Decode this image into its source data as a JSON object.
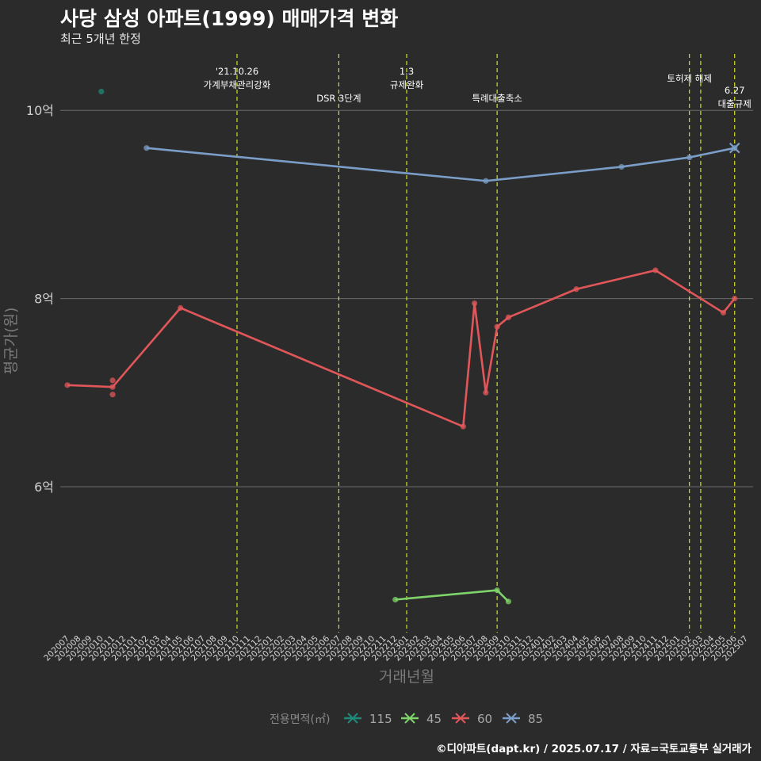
{
  "chart_data": {
    "type": "line",
    "title": "사당 삼성 아파트(1999) 매매가격 변화",
    "subtitle": "최근 5개년 한정",
    "caption": "©디아파트(dapt.kr) / 2025.07.17 / 자료=국토교통부 실거래가",
    "xlabel": "거래년월",
    "ylabel": "평균가(원)",
    "legend_title": "전용면적(㎡)",
    "legend_position": "bottom",
    "ylim": [
      4.45,
      10.6
    ],
    "y_ticks": [
      {
        "value": 6,
        "label": "6억"
      },
      {
        "value": 8,
        "label": "8억"
      },
      {
        "value": 10,
        "label": "10억"
      }
    ],
    "x_categories": [
      "202007",
      "202008",
      "202009",
      "202010",
      "202011",
      "202012",
      "202101",
      "202102",
      "202103",
      "202104",
      "202105",
      "202106",
      "202107",
      "202108",
      "202109",
      "202110",
      "202111",
      "202112",
      "202201",
      "202202",
      "202203",
      "202204",
      "202205",
      "202206",
      "202207",
      "202208",
      "202209",
      "202210",
      "202211",
      "202212",
      "202301",
      "202302",
      "202303",
      "202304",
      "202305",
      "202306",
      "202307",
      "202308",
      "202309",
      "202310",
      "202311",
      "202312",
      "202401",
      "202402",
      "202403",
      "202404",
      "202405",
      "202406",
      "202407",
      "202408",
      "202409",
      "202410",
      "202411",
      "202412",
      "202501",
      "202502",
      "202503",
      "202504",
      "202505",
      "202506",
      "202507"
    ],
    "x_tick_labels": [
      "202007",
      "202008",
      "202009",
      "202010",
      "202011",
      "202012",
      "202101",
      "202102",
      "202103",
      "202104",
      "202105",
      "202106",
      "202107",
      "202108",
      "202109",
      "202110",
      "202111",
      "202112",
      "202201",
      "202202",
      "202203",
      "202204",
      "202205",
      "202206",
      "202207",
      "202208",
      "202209",
      "202210",
      "202211",
      "202212",
      "202301",
      "202302",
      "202303",
      "202304",
      "202305",
      "202306",
      "202307",
      "202308",
      "202309",
      "202310",
      "202311",
      "202312",
      "202401",
      "202402",
      "202403",
      "202404",
      "202405",
      "202406",
      "202407",
      "202408",
      "202409",
      "202410",
      "202411",
      "202412",
      "202501",
      "202502",
      "202503",
      "202504",
      "202505",
      "202506",
      "202507"
    ],
    "series": [
      {
        "name": "115",
        "color": "#1f8a7a",
        "points": [
          {
            "x": "202010",
            "y": 10.2
          }
        ]
      },
      {
        "name": "45",
        "color": "#7fd36b",
        "points": [
          {
            "x": "202212",
            "y": 4.8
          },
          {
            "x": "202309",
            "y": 4.9
          },
          {
            "x": "202310",
            "y": 4.78
          }
        ]
      },
      {
        "name": "60",
        "color": "#e15759",
        "points": [
          {
            "x": "202007",
            "y": 7.08
          },
          {
            "x": "202011",
            "y": 7.06
          },
          {
            "x": "202105",
            "y": 7.9
          },
          {
            "x": "202306",
            "y": 6.64
          },
          {
            "x": "202307",
            "y": 7.95
          },
          {
            "x": "202308",
            "y": 7.0
          },
          {
            "x": "202309",
            "y": 7.7
          },
          {
            "x": "202310",
            "y": 7.8
          },
          {
            "x": "202404",
            "y": 8.1
          },
          {
            "x": "202411",
            "y": 8.3
          },
          {
            "x": "202505",
            "y": 7.85
          },
          {
            "x": "202506",
            "y": 8.0
          }
        ],
        "extra_points": [
          {
            "x": "202011",
            "y": 7.13
          },
          {
            "x": "202011",
            "y": 6.98
          }
        ]
      },
      {
        "name": "85",
        "color": "#7b9ec8",
        "points": [
          {
            "x": "202102",
            "y": 9.6
          },
          {
            "x": "202308",
            "y": 9.25
          },
          {
            "x": "202408",
            "y": 9.4
          },
          {
            "x": "202502",
            "y": 9.5
          },
          {
            "x": "202506",
            "y": 9.6
          }
        ]
      }
    ],
    "annotations": [
      {
        "x": "202110",
        "lines": [
          "'21.10.26",
          "가계부채관리강화"
        ]
      },
      {
        "x": "202207",
        "lines": [
          "DSR 3단계"
        ]
      },
      {
        "x": "202301",
        "lines": [
          "1.3",
          "규제완화"
        ]
      },
      {
        "x": "202309",
        "lines": [
          "특례대출축소"
        ]
      },
      {
        "x": "202502",
        "lines": [
          "토허제 해제"
        ]
      },
      {
        "x": "202503",
        "lines": []
      },
      {
        "x": "202506",
        "lines": [
          "6.27",
          "대출규제"
        ]
      }
    ]
  }
}
